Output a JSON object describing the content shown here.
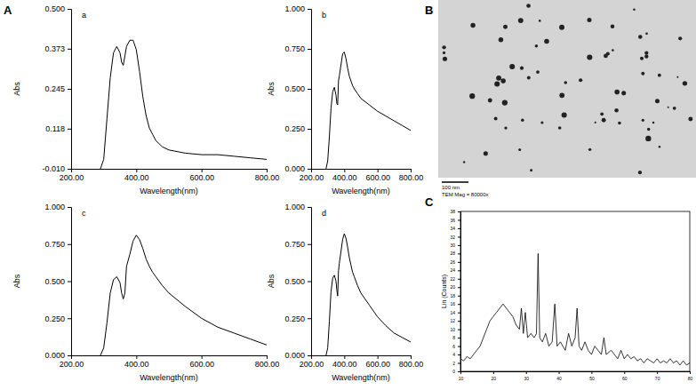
{
  "panel_labels": [
    "A",
    "B",
    "C"
  ],
  "tem_image": {
    "scale_bar": "100 nm",
    "magnification": "TEM Mag = 80000x"
  },
  "chart_data": [
    {
      "type": "line",
      "title": "a",
      "x_label": "Wavelength(nm)",
      "y_label": "Abs",
      "color": "#000000",
      "grid": false,
      "x": [
        290,
        300,
        310,
        320,
        330,
        340,
        350,
        355,
        360,
        365,
        370,
        380,
        390,
        400,
        410,
        420,
        430,
        440,
        450,
        460,
        480,
        500,
        550,
        600,
        650,
        700,
        750,
        800
      ],
      "values": [
        -0.01,
        0.02,
        0.15,
        0.28,
        0.36,
        0.38,
        0.36,
        0.33,
        0.32,
        0.35,
        0.38,
        0.4,
        0.4,
        0.37,
        0.3,
        0.22,
        0.16,
        0.12,
        0.1,
        0.08,
        0.06,
        0.05,
        0.04,
        0.035,
        0.035,
        0.03,
        0.025,
        0.02
      ],
      "xlim": [
        200,
        800
      ],
      "xticks": [
        {
          "value": 200,
          "label": "200.00"
        },
        {
          "value": 400,
          "label": "400.00"
        },
        {
          "value": 600,
          "label": "600.00"
        },
        {
          "value": 800,
          "label": "800.00"
        }
      ],
      "ylim": [
        -0.01,
        0.5
      ],
      "yticks": [
        {
          "value": -0.01,
          "label": "-0.010"
        },
        {
          "value": 0.118,
          "label": "0.118"
        },
        {
          "value": 0.245,
          "label": "0.245"
        },
        {
          "value": 0.373,
          "label": "0.373"
        },
        {
          "value": 0.5,
          "label": "0.500"
        }
      ]
    },
    {
      "type": "line",
      "title": "b",
      "x_label": "Wavelength(nm)",
      "y_label": "Abs",
      "color": "#000000",
      "grid": false,
      "x": [
        290,
        300,
        310,
        320,
        330,
        340,
        350,
        355,
        360,
        365,
        370,
        380,
        390,
        400,
        410,
        420,
        430,
        440,
        450,
        460,
        480,
        500,
        550,
        600,
        650,
        700,
        750,
        800
      ],
      "values": [
        0,
        0.05,
        0.2,
        0.38,
        0.48,
        0.51,
        0.46,
        0.41,
        0.4,
        0.55,
        0.58,
        0.65,
        0.72,
        0.73,
        0.69,
        0.63,
        0.58,
        0.55,
        0.52,
        0.5,
        0.47,
        0.44,
        0.4,
        0.36,
        0.33,
        0.3,
        0.27,
        0.24
      ],
      "xlim": [
        200,
        800
      ],
      "xticks": [
        {
          "value": 200,
          "label": "200.00"
        },
        {
          "value": 400,
          "label": "400.00"
        },
        {
          "value": 600,
          "label": "600.00"
        },
        {
          "value": 800,
          "label": "800.00"
        }
      ],
      "ylim": [
        0,
        1
      ],
      "yticks": [
        {
          "value": 0,
          "label": "0.000"
        },
        {
          "value": 0.25,
          "label": "0.250"
        },
        {
          "value": 0.5,
          "label": "0.500"
        },
        {
          "value": 0.75,
          "label": "0.750"
        },
        {
          "value": 1,
          "label": "1.000"
        }
      ]
    },
    {
      "type": "line",
      "title": "c",
      "x_label": "Wavelength(nm)",
      "y_label": "Abs",
      "color": "#000000",
      "grid": false,
      "x": [
        290,
        300,
        310,
        320,
        330,
        340,
        350,
        355,
        360,
        365,
        370,
        380,
        390,
        400,
        410,
        420,
        430,
        440,
        450,
        460,
        480,
        500,
        550,
        600,
        650,
        700,
        750,
        800
      ],
      "values": [
        0,
        0.05,
        0.22,
        0.42,
        0.51,
        0.53,
        0.49,
        0.42,
        0.38,
        0.42,
        0.6,
        0.68,
        0.77,
        0.81,
        0.78,
        0.72,
        0.65,
        0.6,
        0.56,
        0.53,
        0.47,
        0.42,
        0.33,
        0.25,
        0.19,
        0.15,
        0.11,
        0.07
      ],
      "xlim": [
        200,
        800
      ],
      "xticks": [
        {
          "value": 200,
          "label": "200.00"
        },
        {
          "value": 400,
          "label": "400.00"
        },
        {
          "value": 600,
          "label": "600.00"
        },
        {
          "value": 800,
          "label": "800.00"
        }
      ],
      "ylim": [
        0,
        1
      ],
      "yticks": [
        {
          "value": 0,
          "label": "0.000"
        },
        {
          "value": 0.25,
          "label": "0.250"
        },
        {
          "value": 0.5,
          "label": "0.500"
        },
        {
          "value": 0.75,
          "label": "0.750"
        },
        {
          "value": 1,
          "label": "1.000"
        }
      ]
    },
    {
      "type": "line",
      "title": "d",
      "x_label": "Wavelength(nm)",
      "y_label": "Abs",
      "color": "#000000",
      "grid": false,
      "x": [
        290,
        300,
        310,
        320,
        330,
        340,
        350,
        355,
        360,
        365,
        370,
        380,
        390,
        400,
        410,
        420,
        430,
        440,
        450,
        460,
        480,
        500,
        550,
        600,
        650,
        700,
        750,
        800
      ],
      "values": [
        0,
        0.05,
        0.23,
        0.43,
        0.52,
        0.54,
        0.5,
        0.44,
        0.4,
        0.57,
        0.62,
        0.7,
        0.78,
        0.82,
        0.79,
        0.73,
        0.66,
        0.61,
        0.56,
        0.53,
        0.47,
        0.42,
        0.34,
        0.26,
        0.2,
        0.15,
        0.12,
        0.09
      ],
      "xlim": [
        200,
        800
      ],
      "xticks": [
        {
          "value": 200,
          "label": "200.00"
        },
        {
          "value": 400,
          "label": "400.00"
        },
        {
          "value": 600,
          "label": "600.00"
        },
        {
          "value": 800,
          "label": "800.00"
        }
      ],
      "ylim": [
        0,
        1
      ],
      "yticks": [
        {
          "value": 0,
          "label": "0.000"
        },
        {
          "value": 0.25,
          "label": "0.250"
        },
        {
          "value": 0.5,
          "label": "0.500"
        },
        {
          "value": 0.75,
          "label": "0.750"
        },
        {
          "value": 1,
          "label": "1.000"
        }
      ]
    },
    {
      "type": "line",
      "y_label": "Lin (Counts)",
      "color": "#000000",
      "grid": false,
      "x": [
        10,
        11,
        12,
        13,
        14,
        15,
        16,
        17,
        18,
        19,
        20,
        21,
        22,
        23,
        24,
        25,
        26,
        27,
        28,
        28.6,
        29.2,
        29.8,
        30.5,
        31.5,
        32.5,
        33.2,
        33.7,
        34.2,
        35,
        36,
        37,
        38,
        38.8,
        39.5,
        40.5,
        42,
        43,
        44,
        45,
        45.6,
        46.2,
        47,
        48,
        49,
        50,
        51,
        52,
        53,
        53.8,
        54.5,
        56,
        57,
        58,
        59,
        60,
        61,
        62,
        63,
        64,
        65,
        66,
        67,
        68,
        69,
        70,
        71,
        72,
        73,
        74,
        75,
        76,
        77,
        78,
        79,
        80
      ],
      "values": [
        3,
        2.5,
        3.5,
        3,
        4,
        5,
        6,
        8,
        10,
        12,
        13,
        14,
        15,
        16,
        15,
        14,
        13,
        11,
        10,
        15,
        9,
        14,
        8,
        9,
        8,
        9,
        28,
        8,
        7,
        9,
        6,
        7,
        16,
        6,
        7,
        5,
        9,
        6,
        8,
        15,
        6,
        5,
        7,
        5,
        4,
        6,
        5,
        4,
        8,
        4,
        5,
        4,
        3,
        5,
        3,
        4,
        3,
        3.5,
        2.5,
        3,
        2,
        3,
        2.5,
        2,
        3,
        2,
        2.5,
        2,
        3,
        2,
        2.5,
        1.5,
        2.5,
        1.5,
        2
      ],
      "xlim": [
        10,
        80
      ],
      "xticks": [
        10,
        20,
        30,
        40,
        50,
        60,
        70,
        80
      ],
      "ylim": [
        0,
        38
      ],
      "yticks": [
        0,
        2,
        4,
        6,
        8,
        10,
        12,
        14,
        16,
        18,
        20,
        22,
        24,
        26,
        28,
        30,
        32,
        34,
        36,
        38
      ]
    }
  ]
}
